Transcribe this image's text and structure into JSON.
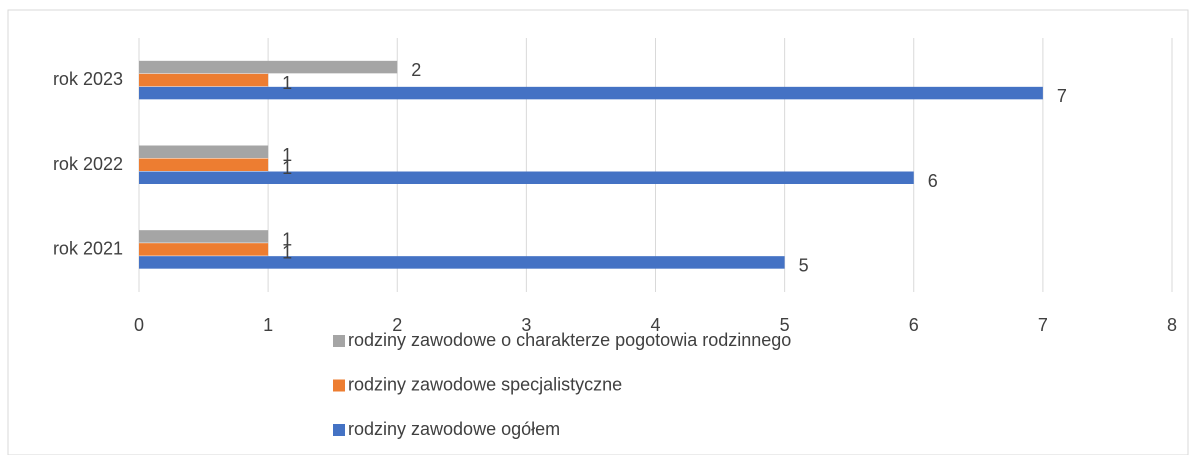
{
  "chart_data": {
    "type": "hbar",
    "categories": [
      "rok 2021",
      "rok 2022",
      "rok 2023"
    ],
    "series": [
      {
        "name": "rodziny zawodowe ogółem",
        "color": "#4472c4",
        "values": [
          5,
          6,
          7
        ]
      },
      {
        "name": "rodziny zawodowe specjalistyczne",
        "color": "#ed7d31",
        "values": [
          1,
          1,
          1
        ]
      },
      {
        "name": "rodziny zawodowe o charakterze pogotowia rodzinnego",
        "color": "#a5a5a5",
        "values": [
          1,
          1,
          2
        ]
      }
    ],
    "xlim": [
      0,
      8
    ],
    "xticks": [
      0,
      1,
      2,
      3,
      4,
      5,
      6,
      7,
      8
    ],
    "grid": true,
    "legend": "bottom"
  }
}
